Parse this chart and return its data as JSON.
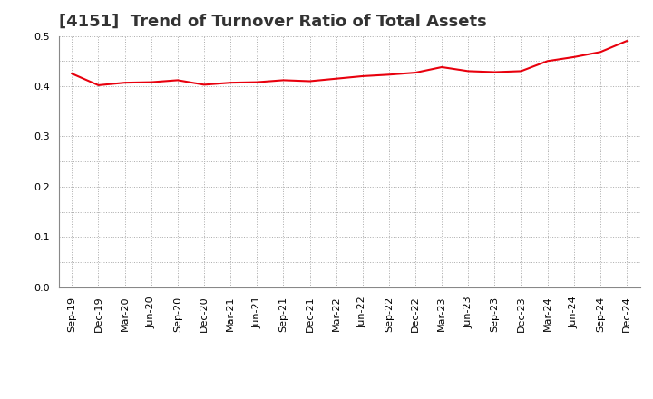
{
  "title": "[4151]  Trend of Turnover Ratio of Total Assets",
  "x_labels": [
    "Sep-19",
    "Dec-19",
    "Mar-20",
    "Jun-20",
    "Sep-20",
    "Dec-20",
    "Mar-21",
    "Jun-21",
    "Sep-21",
    "Dec-21",
    "Mar-22",
    "Jun-22",
    "Sep-22",
    "Dec-22",
    "Mar-23",
    "Jun-23",
    "Sep-23",
    "Dec-23",
    "Mar-24",
    "Jun-24",
    "Sep-24",
    "Dec-24"
  ],
  "values": [
    0.425,
    0.402,
    0.407,
    0.408,
    0.412,
    0.403,
    0.407,
    0.408,
    0.412,
    0.41,
    0.415,
    0.42,
    0.423,
    0.427,
    0.438,
    0.43,
    0.428,
    0.43,
    0.45,
    0.458,
    0.468,
    0.49
  ],
  "line_color": "#e8000d",
  "line_width": 1.5,
  "ylim": [
    0.0,
    0.5
  ],
  "yticks": [
    0.0,
    0.1,
    0.2,
    0.3,
    0.4,
    0.5
  ],
  "grid_color": "#aaaaaa",
  "bg_color": "#ffffff",
  "title_fontsize": 13,
  "tick_fontsize": 8
}
